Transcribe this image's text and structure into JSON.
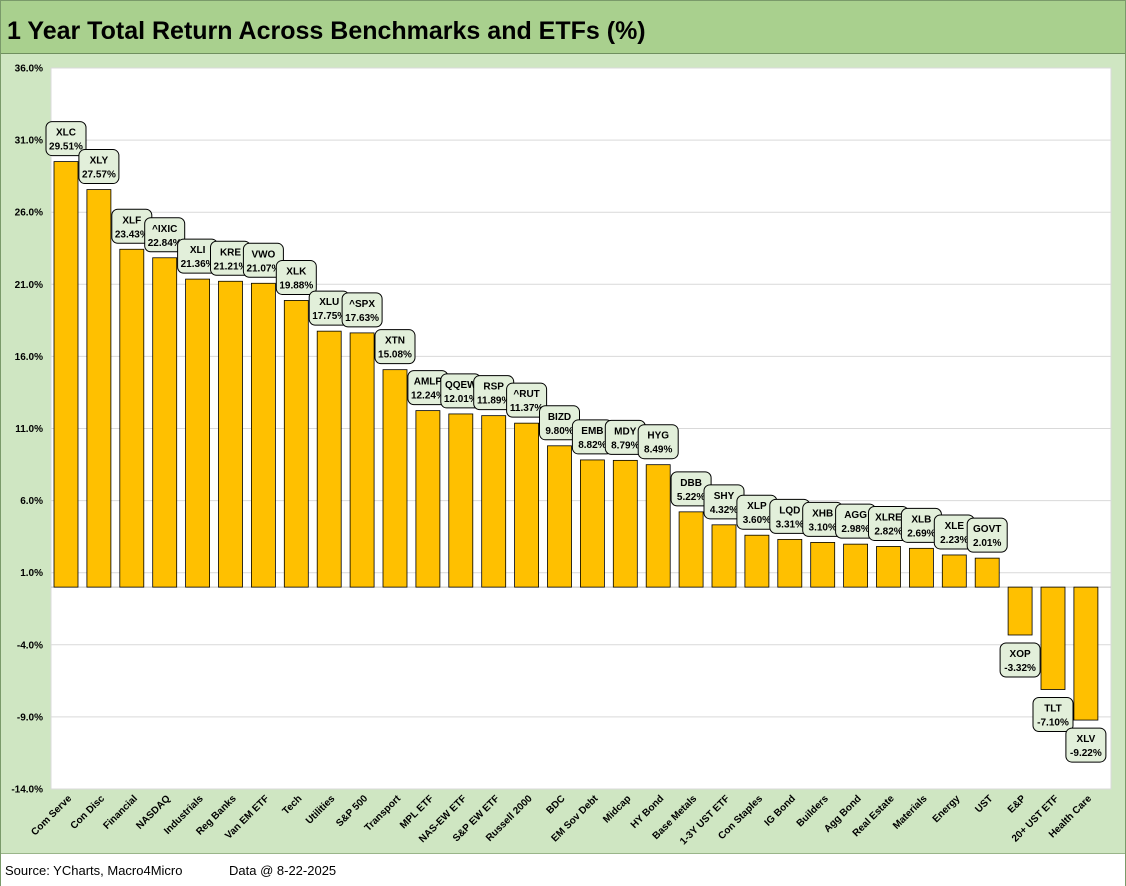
{
  "title": "1 Year Total Return Across Benchmarks and ETFs (%)",
  "footer": {
    "source": "Source: YCharts, Macro4Micro",
    "date": "Data @ 8-22-2025"
  },
  "colors": {
    "bar": "#ffc000",
    "plot_background": "#ffffff",
    "chart_background": "#cfe6c2",
    "title_bar": "#a9d08e",
    "label_box": "#e2efda"
  },
  "chart_data": {
    "type": "bar",
    "title": "1 Year Total Return Across Benchmarks and ETFs (%)",
    "categories": [
      "Com Serve",
      "Con Disc",
      "Financial",
      "NASDAQ",
      "Industrials",
      "Reg Banks",
      "Van EM ETF",
      "Tech",
      "Utilities",
      "S&P 500",
      "Transport",
      "MPL ETF",
      "NAS-EW ETF",
      "S&P EW ETF",
      "Russell 2000",
      "BDC",
      "EM Sov Debt",
      "Midcap",
      "HY Bond",
      "Base Metals",
      "1-3Y UST ETF",
      "Con Staples",
      "IG Bond",
      "Builders",
      "Agg Bond",
      "Real Estate",
      "Materials",
      "Energy",
      "UST",
      "E&P",
      "20+ UST ETF",
      "Health Care"
    ],
    "tickers": [
      "XLC",
      "XLY",
      "XLF",
      "^IXIC",
      "XLI",
      "KRE",
      "VWO",
      "XLK",
      "XLU",
      "^SPX",
      "XTN",
      "AMLP",
      "QQEW",
      "RSP",
      "^RUT",
      "BIZD",
      "EMB",
      "MDY",
      "HYG",
      "DBB",
      "SHY",
      "XLP",
      "LQD",
      "XHB",
      "AGG",
      "XLRE",
      "XLB",
      "XLE",
      "GOVT",
      "XOP",
      "TLT",
      "XLV"
    ],
    "values": [
      29.51,
      27.57,
      23.43,
      22.84,
      21.36,
      21.21,
      21.07,
      19.88,
      17.75,
      17.63,
      15.08,
      12.24,
      12.01,
      11.89,
      11.37,
      9.8,
      8.82,
      8.79,
      8.49,
      5.22,
      4.32,
      3.6,
      3.31,
      3.1,
      2.98,
      2.82,
      2.69,
      2.23,
      2.01,
      -3.32,
      -7.1,
      -9.22
    ],
    "data_labels": [
      "29.51%",
      "27.57%",
      "23.43%",
      "22.84%",
      "21.36%",
      "21.21%",
      "21.07%",
      "19.88%",
      "17.75%",
      "17.63%",
      "15.08%",
      "12.24%",
      "12.01%",
      "11.89%",
      "11.37%",
      "9.80%",
      "8.82%",
      "8.79%",
      "8.49%",
      "5.22%",
      "4.32%",
      "3.60%",
      "3.31%",
      "3.10%",
      "2.98%",
      "2.82%",
      "2.69%",
      "2.23%",
      "2.01%",
      "-3.32%",
      "-7.10%",
      "-9.22%"
    ],
    "y_ticks": [
      36,
      31,
      26,
      21,
      16,
      11,
      6,
      1,
      -4,
      -9,
      -14
    ],
    "y_tick_labels": [
      "36.0%",
      "31.0%",
      "26.0%",
      "21.0%",
      "16.0%",
      "11.0%",
      "6.0%",
      "1.0%",
      "-4.0%",
      "-9.0%",
      "-14.0%"
    ],
    "ylim": [
      -14,
      36
    ],
    "xlabel": "",
    "ylabel": "",
    "grid": true,
    "legend": "none"
  }
}
